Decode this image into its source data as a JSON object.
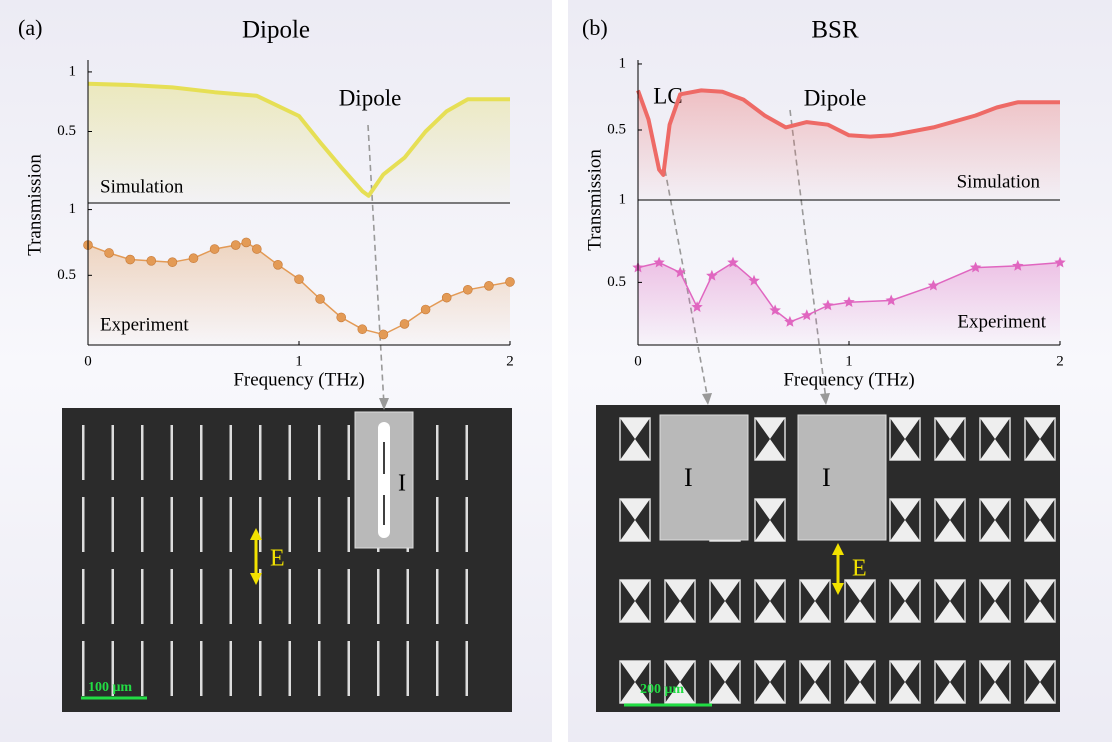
{
  "panels": [
    {
      "label": "(a)",
      "title": "Dipole",
      "y_label": "Transmission",
      "x_label": "Frequency (THz)",
      "annotations": [
        "Dipole"
      ],
      "image": {
        "inset_label": "I",
        "field_label": "E",
        "scale_bar": "100 μm"
      }
    },
    {
      "label": "(b)",
      "title": "BSR",
      "y_label": "Transmission",
      "x_label": "Frequency (THz)",
      "annotations": [
        "LC",
        "Dipole"
      ],
      "image": {
        "inset_labels": [
          "I",
          "I"
        ],
        "field_label": "E",
        "scale_bar": "200 μm"
      }
    }
  ],
  "chart_data": [
    {
      "type": "line",
      "label": "Simulation",
      "color": "#e6df55",
      "x": [
        0,
        0.2,
        0.4,
        0.6,
        0.8,
        1.0,
        1.1,
        1.2,
        1.3,
        1.33,
        1.4,
        1.5,
        1.6,
        1.7,
        1.8,
        1.9,
        2.0
      ],
      "values": [
        0.9,
        0.89,
        0.87,
        0.83,
        0.8,
        0.63,
        0.41,
        0.2,
        0.0,
        -0.04,
        0.14,
        0.28,
        0.5,
        0.67,
        0.77,
        0.77,
        0.77
      ],
      "xlim": [
        0,
        2
      ],
      "ylim": [
        -0.1,
        1.1
      ],
      "yticks": [
        0.5,
        1
      ]
    },
    {
      "type": "line",
      "label": "Experiment",
      "color": "#e39a55",
      "marker": "circle",
      "x": [
        0,
        0.1,
        0.2,
        0.3,
        0.4,
        0.5,
        0.6,
        0.7,
        0.75,
        0.8,
        0.9,
        1.0,
        1.1,
        1.2,
        1.3,
        1.4,
        1.5,
        1.6,
        1.7,
        1.8,
        1.9,
        2.0
      ],
      "values": [
        0.73,
        0.67,
        0.62,
        0.61,
        0.6,
        0.63,
        0.7,
        0.73,
        0.75,
        0.7,
        0.58,
        0.47,
        0.32,
        0.18,
        0.09,
        0.05,
        0.13,
        0.24,
        0.33,
        0.39,
        0.42,
        0.45
      ],
      "xlim": [
        0,
        2
      ],
      "ylim": [
        -0.03,
        1.05
      ],
      "xticks": [
        0,
        1,
        2
      ],
      "yticks": [
        0.5,
        1
      ]
    },
    {
      "type": "line",
      "label": "Simulation",
      "color": "#ee6a66",
      "x": [
        0,
        0.05,
        0.1,
        0.12,
        0.15,
        0.2,
        0.3,
        0.4,
        0.5,
        0.6,
        0.7,
        0.8,
        0.9,
        1.0,
        1.1,
        1.2,
        1.4,
        1.6,
        1.7,
        1.8,
        2.0
      ],
      "values": [
        0.8,
        0.58,
        0.2,
        0.16,
        0.54,
        0.77,
        0.8,
        0.79,
        0.73,
        0.61,
        0.52,
        0.56,
        0.54,
        0.46,
        0.45,
        0.46,
        0.52,
        0.61,
        0.67,
        0.71,
        0.71
      ],
      "xlim": [
        0,
        2
      ],
      "ylim": [
        -0.03,
        1.03
      ],
      "yticks": [
        0.5,
        1
      ]
    },
    {
      "type": "line",
      "label": "Experiment",
      "color": "#e066c0",
      "marker": "star",
      "x": [
        0,
        0.1,
        0.2,
        0.28,
        0.35,
        0.45,
        0.55,
        0.65,
        0.72,
        0.8,
        0.9,
        1.0,
        1.2,
        1.4,
        1.6,
        1.8,
        2.0
      ],
      "values": [
        0.59,
        0.62,
        0.56,
        0.35,
        0.54,
        0.62,
        0.51,
        0.33,
        0.26,
        0.3,
        0.36,
        0.38,
        0.39,
        0.48,
        0.59,
        0.6,
        0.62
      ],
      "xlim": [
        0,
        2
      ],
      "ylim": [
        0.12,
        1
      ],
      "xticks": [
        0,
        1,
        2
      ],
      "yticks": [
        0.5,
        1
      ]
    }
  ]
}
